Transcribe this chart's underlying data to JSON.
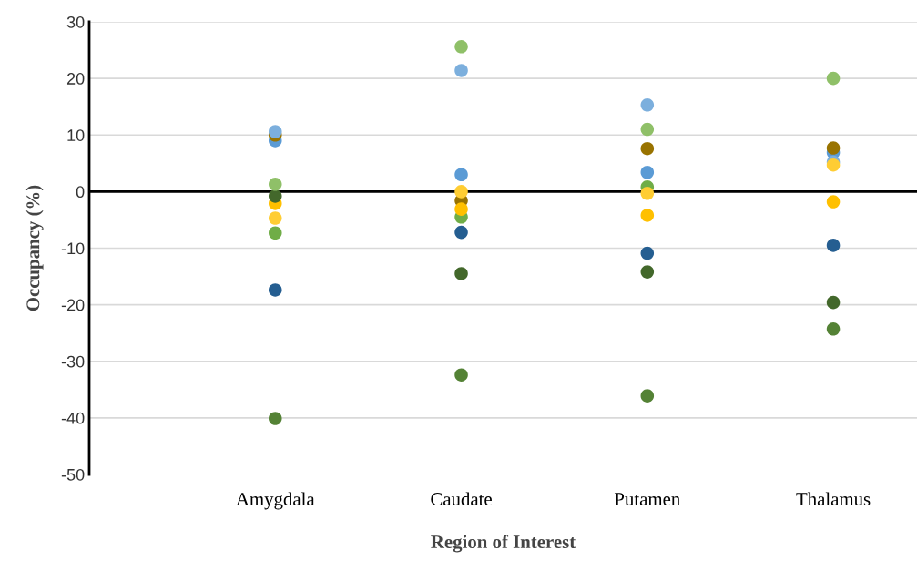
{
  "chart_data": {
    "type": "scatter",
    "xlabel": "Region of Interest",
    "ylabel": "Occupancy (%)",
    "categories": [
      "Amygdala",
      "Caudate",
      "Putamen",
      "Thalamus"
    ],
    "ylim": [
      -50,
      30
    ],
    "yticks": [
      -50,
      -40,
      -30,
      -20,
      -10,
      0,
      10,
      20,
      30
    ],
    "grid": "y",
    "marker": "circle",
    "ref_lines": [
      {
        "axis": "y",
        "value": 0,
        "color": "#000000"
      }
    ],
    "series": [
      {
        "color": "#255e91",
        "values": [
          -17.4,
          -7.2,
          -10.9,
          -9.5
        ]
      },
      {
        "color": "#5b9bd5",
        "values": [
          9.0,
          3.0,
          3.4,
          6.9
        ]
      },
      {
        "color": "#997300",
        "values": [
          10.0,
          -1.6,
          7.6,
          7.7
        ]
      },
      {
        "color": "#7cafdd",
        "values": [
          10.6,
          21.4,
          15.3,
          5.2
        ]
      },
      {
        "color": "#548235",
        "values": [
          -40.1,
          -32.4,
          -36.1,
          -24.3
        ]
      },
      {
        "color": "#70ad47",
        "values": [
          -7.3,
          -4.5,
          0.8,
          null
        ]
      },
      {
        "color": "#ffc000",
        "values": [
          -2.1,
          -3.1,
          -4.2,
          -1.8
        ]
      },
      {
        "color": "#43682b",
        "values": [
          -0.8,
          -14.5,
          -14.2,
          -19.6
        ]
      },
      {
        "color": "#8fc068",
        "values": [
          1.3,
          25.6,
          11.0,
          20.0
        ]
      },
      {
        "color": "#ffcd33",
        "values": [
          -4.7,
          0.0,
          -0.3,
          4.7
        ]
      }
    ]
  }
}
